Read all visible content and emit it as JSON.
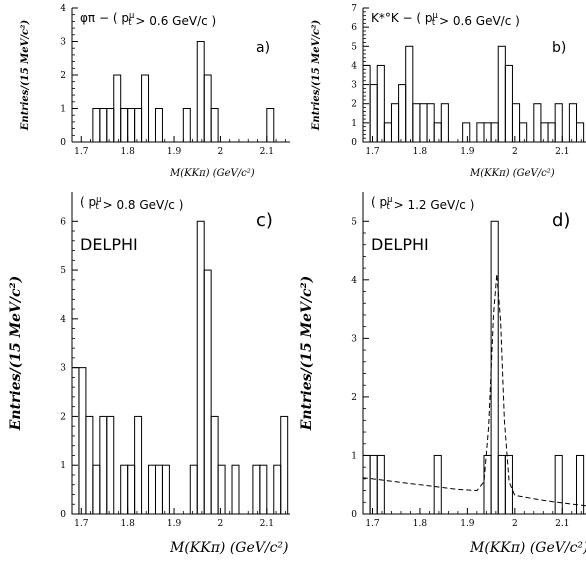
{
  "chart_data": [
    {
      "type": "histogram",
      "letter": "a)",
      "annotation": "φπ − ( p_t^μ > 0.6 GeV/c )",
      "ylabel": "Entries/(15 MeV/c²)",
      "xlabel": "M(KKπ) (GeV/c²)",
      "xlim": [
        1.68,
        2.15
      ],
      "ylim": [
        0,
        4
      ],
      "bin_width": 0.015,
      "x_ticks": [
        "1.7",
        "1.8",
        "1.9",
        "2",
        "2.1"
      ],
      "x_tick_values": [
        1.7,
        1.8,
        1.9,
        2.0,
        2.1
      ],
      "y_ticks": [
        "0",
        "1",
        "2",
        "3",
        "4"
      ],
      "y_tick_values": [
        0,
        1,
        2,
        3,
        4
      ],
      "delphi": "",
      "bins": [
        {
          "x": 1.725,
          "y": 1
        },
        {
          "x": 1.74,
          "y": 1
        },
        {
          "x": 1.755,
          "y": 1
        },
        {
          "x": 1.77,
          "y": 2
        },
        {
          "x": 1.785,
          "y": 1
        },
        {
          "x": 1.8,
          "y": 1
        },
        {
          "x": 1.815,
          "y": 1
        },
        {
          "x": 1.83,
          "y": 2
        },
        {
          "x": 1.845,
          "y": 0
        },
        {
          "x": 1.86,
          "y": 1
        },
        {
          "x": 1.875,
          "y": 0
        },
        {
          "x": 1.89,
          "y": 0
        },
        {
          "x": 1.905,
          "y": 0
        },
        {
          "x": 1.92,
          "y": 1
        },
        {
          "x": 1.935,
          "y": 0
        },
        {
          "x": 1.95,
          "y": 3
        },
        {
          "x": 1.965,
          "y": 2
        },
        {
          "x": 1.98,
          "y": 1
        },
        {
          "x": 1.995,
          "y": 0
        },
        {
          "x": 2.01,
          "y": 0
        },
        {
          "x": 2.025,
          "y": 0
        },
        {
          "x": 2.04,
          "y": 0
        },
        {
          "x": 2.055,
          "y": 0
        },
        {
          "x": 2.07,
          "y": 0
        },
        {
          "x": 2.085,
          "y": 0
        },
        {
          "x": 2.1,
          "y": 1
        }
      ]
    },
    {
      "type": "histogram",
      "letter": "b)",
      "annotation": "K*°K − ( p_t^μ > 0.6 GeV/c )",
      "ylabel": "Entries/(15 MeV/c²)",
      "xlabel": "M(KKπ) (GeV/c²)",
      "xlim": [
        1.68,
        2.15
      ],
      "ylim": [
        0,
        7
      ],
      "bin_width": 0.015,
      "x_ticks": [
        "1.7",
        "1.8",
        "1.9",
        "2",
        "2.1"
      ],
      "x_tick_values": [
        1.7,
        1.8,
        1.9,
        2.0,
        2.1
      ],
      "y_ticks": [
        "0",
        "1",
        "2",
        "3",
        "4",
        "5",
        "6",
        "7"
      ],
      "y_tick_values": [
        0,
        1,
        2,
        3,
        4,
        5,
        6,
        7
      ],
      "delphi": "",
      "bins": [
        {
          "x": 1.68,
          "y": 4
        },
        {
          "x": 1.695,
          "y": 3
        },
        {
          "x": 1.71,
          "y": 4
        },
        {
          "x": 1.725,
          "y": 1
        },
        {
          "x": 1.74,
          "y": 2
        },
        {
          "x": 1.755,
          "y": 3
        },
        {
          "x": 1.77,
          "y": 5
        },
        {
          "x": 1.785,
          "y": 2
        },
        {
          "x": 1.8,
          "y": 2
        },
        {
          "x": 1.815,
          "y": 2
        },
        {
          "x": 1.83,
          "y": 1
        },
        {
          "x": 1.845,
          "y": 2
        },
        {
          "x": 1.86,
          "y": 0
        },
        {
          "x": 1.875,
          "y": 0
        },
        {
          "x": 1.89,
          "y": 1
        },
        {
          "x": 1.905,
          "y": 0
        },
        {
          "x": 1.92,
          "y": 1
        },
        {
          "x": 1.935,
          "y": 1
        },
        {
          "x": 1.95,
          "y": 1
        },
        {
          "x": 1.965,
          "y": 5
        },
        {
          "x": 1.98,
          "y": 4
        },
        {
          "x": 1.995,
          "y": 2
        },
        {
          "x": 2.01,
          "y": 1
        },
        {
          "x": 2.025,
          "y": 0
        },
        {
          "x": 2.04,
          "y": 2
        },
        {
          "x": 2.055,
          "y": 1
        },
        {
          "x": 2.07,
          "y": 1
        },
        {
          "x": 2.085,
          "y": 2
        },
        {
          "x": 2.1,
          "y": 0
        },
        {
          "x": 2.115,
          "y": 2
        },
        {
          "x": 2.13,
          "y": 1
        }
      ]
    },
    {
      "type": "histogram",
      "letter": "c)",
      "annotation": "( p_t^μ > 0.8 GeV/c )",
      "ylabel": "Entries/(15 MeV/c²)",
      "xlabel": "M(KKπ) (GeV/c²)",
      "xlim": [
        1.68,
        2.15
      ],
      "ylim": [
        0,
        6.6
      ],
      "bin_width": 0.015,
      "x_ticks": [
        "1.7",
        "1.8",
        "1.9",
        "2",
        "2.1"
      ],
      "x_tick_values": [
        1.7,
        1.8,
        1.9,
        2.0,
        2.1
      ],
      "y_ticks": [
        "0",
        "1",
        "2",
        "3",
        "4",
        "5",
        "6"
      ],
      "y_tick_values": [
        0,
        1,
        2,
        3,
        4,
        5,
        6
      ],
      "delphi": "DELPHI",
      "bins": [
        {
          "x": 1.68,
          "y": 3
        },
        {
          "x": 1.695,
          "y": 3
        },
        {
          "x": 1.71,
          "y": 2
        },
        {
          "x": 1.725,
          "y": 1
        },
        {
          "x": 1.74,
          "y": 2
        },
        {
          "x": 1.755,
          "y": 2
        },
        {
          "x": 1.77,
          "y": 0
        },
        {
          "x": 1.785,
          "y": 1
        },
        {
          "x": 1.8,
          "y": 1
        },
        {
          "x": 1.815,
          "y": 2
        },
        {
          "x": 1.83,
          "y": 0
        },
        {
          "x": 1.845,
          "y": 1
        },
        {
          "x": 1.86,
          "y": 1
        },
        {
          "x": 1.875,
          "y": 1
        },
        {
          "x": 1.89,
          "y": 0
        },
        {
          "x": 1.905,
          "y": 0
        },
        {
          "x": 1.92,
          "y": 0
        },
        {
          "x": 1.935,
          "y": 1
        },
        {
          "x": 1.95,
          "y": 6
        },
        {
          "x": 1.965,
          "y": 5
        },
        {
          "x": 1.98,
          "y": 2
        },
        {
          "x": 1.995,
          "y": 1
        },
        {
          "x": 2.01,
          "y": 0
        },
        {
          "x": 2.025,
          "y": 1
        },
        {
          "x": 2.04,
          "y": 0
        },
        {
          "x": 2.055,
          "y": 0
        },
        {
          "x": 2.07,
          "y": 1
        },
        {
          "x": 2.085,
          "y": 1
        },
        {
          "x": 2.1,
          "y": 0
        },
        {
          "x": 2.115,
          "y": 1
        },
        {
          "x": 2.13,
          "y": 2
        }
      ]
    },
    {
      "type": "histogram",
      "letter": "d)",
      "annotation": "( p_t^μ > 1.2 GeV/c )",
      "ylabel": "Entries/(15 MeV/c²)",
      "xlabel": "M(KKπ) (GeV/c²)",
      "xlim": [
        1.68,
        2.15
      ],
      "ylim": [
        0,
        5.5
      ],
      "bin_width": 0.015,
      "x_ticks": [
        "1.7",
        "1.8",
        "1.9",
        "2",
        "2.1"
      ],
      "x_tick_values": [
        1.7,
        1.8,
        1.9,
        2.0,
        2.1
      ],
      "y_ticks": [
        "0",
        "1",
        "2",
        "3",
        "4",
        "5"
      ],
      "y_tick_values": [
        0,
        1,
        2,
        3,
        4,
        5
      ],
      "delphi": "DELPHI",
      "bins": [
        {
          "x": 1.68,
          "y": 1
        },
        {
          "x": 1.695,
          "y": 1
        },
        {
          "x": 1.71,
          "y": 1
        },
        {
          "x": 1.725,
          "y": 0
        },
        {
          "x": 1.74,
          "y": 0
        },
        {
          "x": 1.755,
          "y": 0
        },
        {
          "x": 1.77,
          "y": 0
        },
        {
          "x": 1.785,
          "y": 0
        },
        {
          "x": 1.8,
          "y": 0
        },
        {
          "x": 1.815,
          "y": 0
        },
        {
          "x": 1.83,
          "y": 1
        },
        {
          "x": 1.845,
          "y": 0
        },
        {
          "x": 1.86,
          "y": 0
        },
        {
          "x": 1.875,
          "y": 0
        },
        {
          "x": 1.89,
          "y": 0
        },
        {
          "x": 1.905,
          "y": 0
        },
        {
          "x": 1.92,
          "y": 0
        },
        {
          "x": 1.935,
          "y": 1
        },
        {
          "x": 1.95,
          "y": 5
        },
        {
          "x": 1.965,
          "y": 1
        },
        {
          "x": 1.98,
          "y": 1
        },
        {
          "x": 1.995,
          "y": 0
        },
        {
          "x": 2.01,
          "y": 0
        },
        {
          "x": 2.025,
          "y": 0
        },
        {
          "x": 2.04,
          "y": 0
        },
        {
          "x": 2.055,
          "y": 0
        },
        {
          "x": 2.07,
          "y": 0
        },
        {
          "x": 2.085,
          "y": 1
        },
        {
          "x": 2.1,
          "y": 0
        },
        {
          "x": 2.115,
          "y": 0
        },
        {
          "x": 2.13,
          "y": 1
        }
      ],
      "fit_curve": [
        [
          1.68,
          0.62
        ],
        [
          1.75,
          0.55
        ],
        [
          1.82,
          0.48
        ],
        [
          1.88,
          0.42
        ],
        [
          1.92,
          0.4
        ],
        [
          1.935,
          0.55
        ],
        [
          1.945,
          1.5
        ],
        [
          1.955,
          3.4
        ],
        [
          1.962,
          4.1
        ],
        [
          1.97,
          3.3
        ],
        [
          1.978,
          1.6
        ],
        [
          1.988,
          0.55
        ],
        [
          2.0,
          0.32
        ],
        [
          2.04,
          0.26
        ],
        [
          2.08,
          0.21
        ],
        [
          2.15,
          0.14
        ]
      ]
    }
  ]
}
